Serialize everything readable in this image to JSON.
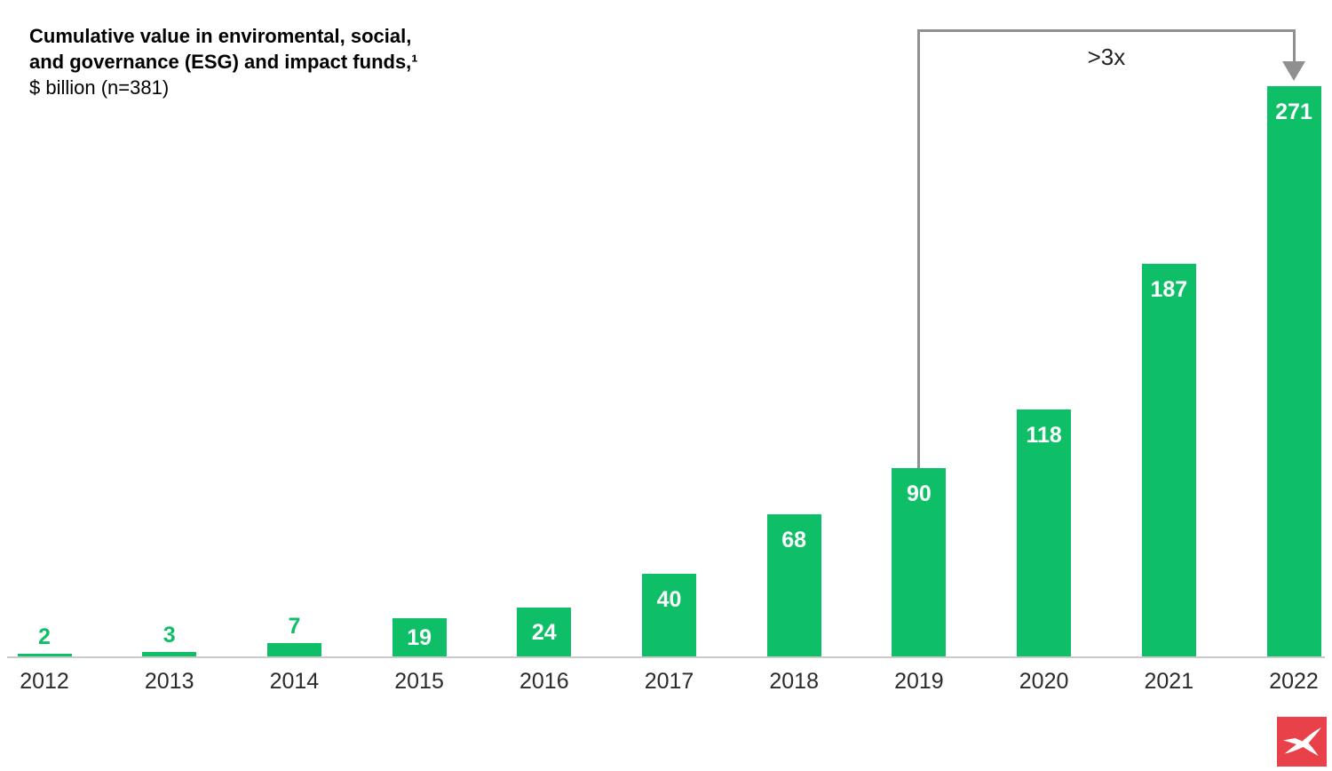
{
  "title": {
    "line1": "Cumulative value in enviromental, social,",
    "line2": "and governance (ESG) and impact funds,¹",
    "line3": "$ billion (n=381)"
  },
  "chart_data": {
    "type": "bar",
    "title": "Cumulative value in enviromental, social, and governance (ESG) and impact funds, $ billion (n=381)",
    "categories": [
      "2012",
      "2013",
      "2014",
      "2015",
      "2016",
      "2017",
      "2018",
      "2019",
      "2020",
      "2021",
      "2022"
    ],
    "values": [
      2,
      3,
      7,
      19,
      24,
      40,
      68,
      90,
      118,
      187,
      271
    ],
    "xlabel": "",
    "ylabel": "$ billion",
    "ylim": [
      0,
      280
    ],
    "grid": false,
    "legend": false,
    "bar_color": "#0fbf67",
    "label_color_inside": "#ffffff",
    "label_color_above": "#0fbf67",
    "annotation": {
      "text": ">3x",
      "from_category": "2019",
      "to_category": "2022",
      "color": "#909090"
    }
  },
  "colors": {
    "bar_green": "#0fbf67",
    "axis_gray": "#c9c9c9",
    "bracket_gray": "#909090",
    "year_label": "#2b2b2b",
    "logo_red": "#e8414a"
  },
  "logo": {
    "name": "xtb-logo"
  }
}
